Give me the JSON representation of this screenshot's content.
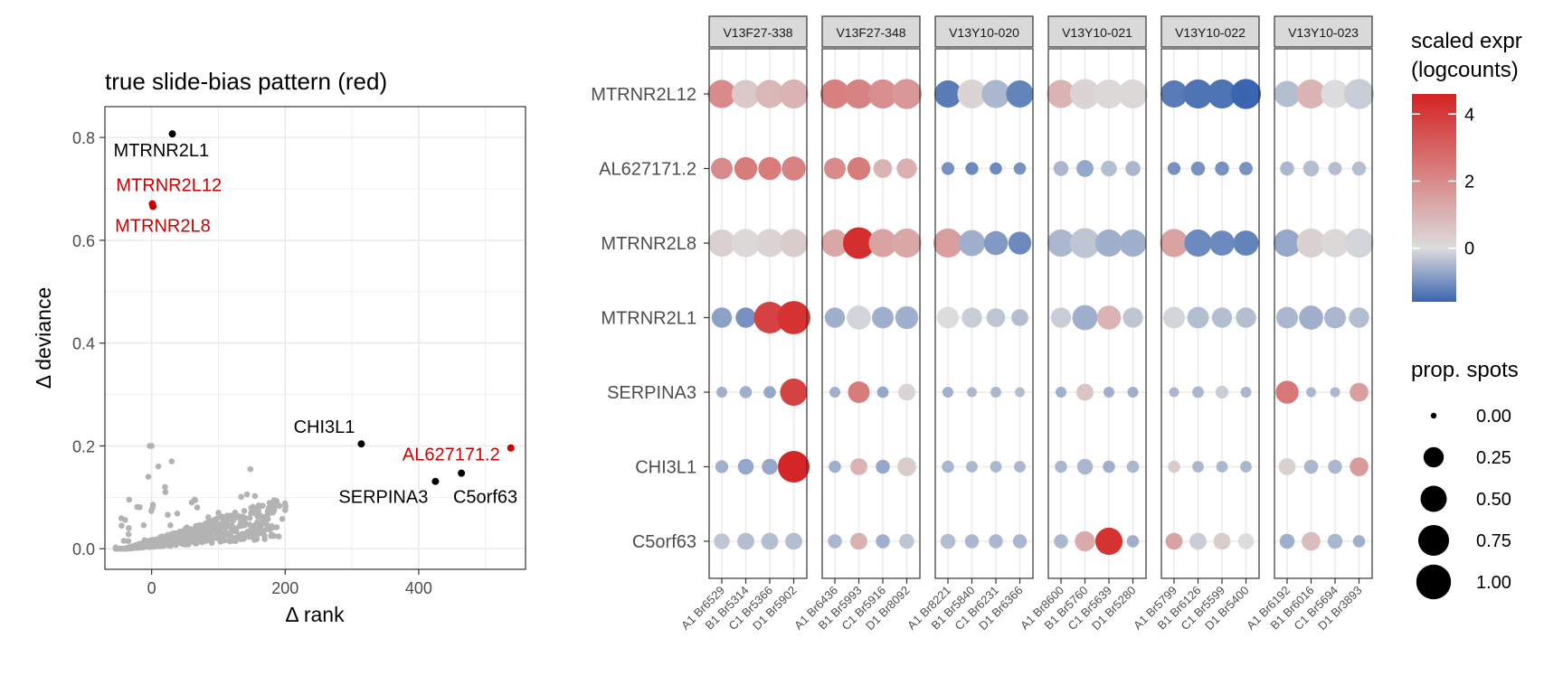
{
  "colors": {
    "highlight": "#cc0000",
    "labeled": "#000000",
    "background_points": "#b3b3b3",
    "strip_fill": "#d9d9d9",
    "grid": "#ebebeb",
    "scale_low": "#3b65b0",
    "scale_mid": "#dcdcdc",
    "scale_high": "#d42222"
  },
  "chart_data": [
    {
      "type": "scatter",
      "title": "true slide-bias pattern (red)",
      "xlabel": "Δ rank",
      "ylabel": "Δ deviance",
      "xlim": [
        -70,
        560
      ],
      "ylim": [
        -0.04,
        0.86
      ],
      "xticks": [
        0,
        200,
        400
      ],
      "yticks": [
        0.0,
        0.2,
        0.4,
        0.6,
        0.8
      ],
      "ytick_labels": [
        "0.0",
        "0.2",
        "0.4",
        "0.6",
        "0.8"
      ],
      "grid": true,
      "labeled_points": [
        {
          "label": "MTRNR2L1",
          "x": 31,
          "y": 0.807,
          "color": "#000000"
        },
        {
          "label": "MTRNR2L12",
          "x": 1,
          "y": 0.671,
          "color": "#cc0000"
        },
        {
          "label": "MTRNR2L8",
          "x": 2,
          "y": 0.666,
          "color": "#cc0000"
        },
        {
          "label": "CHI3L1",
          "x": 314,
          "y": 0.204,
          "color": "#000000"
        },
        {
          "label": "AL627171.2",
          "x": 538,
          "y": 0.196,
          "color": "#cc0000"
        },
        {
          "label": "SERPINA3",
          "x": 425,
          "y": 0.131,
          "color": "#000000"
        },
        {
          "label": "C5orf63",
          "x": 464,
          "y": 0.147,
          "color": "#000000"
        }
      ],
      "background_points_description_shown": false
    },
    {
      "type": "dot",
      "genes": [
        "MTRNR2L12",
        "AL627171.2",
        "MTRNR2L8",
        "MTRNR2L1",
        "SERPINA3",
        "CHI3L1",
        "C5orf63"
      ],
      "facets": [
        {
          "slide": "V13F27-338",
          "samples": [
            "A1 Br6529",
            "B1 Br5314",
            "C1 Br5366",
            "D1 Br5902"
          ],
          "expr": [
            [
              2.0,
              0.5,
              0.9,
              1.0
            ],
            [
              2.0,
              2.4,
              2.4,
              2.2
            ],
            [
              0.3,
              0.1,
              0.2,
              0.4
            ],
            [
              -0.8,
              -1.0,
              3.8,
              4.2
            ],
            [
              -0.6,
              -0.6,
              -0.7,
              3.8
            ],
            [
              -0.6,
              -0.7,
              -0.7,
              4.5
            ],
            [
              -0.3,
              -0.4,
              -0.4,
              -0.4
            ]
          ],
          "prop": [
            [
              0.6,
              0.6,
              0.6,
              0.65
            ],
            [
              0.3,
              0.35,
              0.35,
              0.4
            ],
            [
              0.55,
              0.6,
              0.6,
              0.6
            ],
            [
              0.25,
              0.25,
              0.8,
              0.9
            ],
            [
              0.03,
              0.05,
              0.05,
              0.55
            ],
            [
              0.06,
              0.12,
              0.12,
              0.8
            ],
            [
              0.12,
              0.15,
              0.15,
              0.15
            ]
          ]
        },
        {
          "slide": "V13F27-348",
          "samples": [
            "A1 Br6436",
            "B1 Br5993",
            "C1 Br5916",
            "D1 Br8092"
          ],
          "expr": [
            [
              2.3,
              2.2,
              1.9,
              1.7
            ],
            [
              2.0,
              2.4,
              1.0,
              1.1
            ],
            [
              1.3,
              4.3,
              1.4,
              1.3
            ],
            [
              -0.6,
              -0.1,
              -0.6,
              -0.6
            ],
            [
              -0.6,
              2.4,
              -0.7,
              0.2
            ],
            [
              -0.6,
              1.0,
              -0.7,
              0.4
            ],
            [
              -0.5,
              1.1,
              -0.6,
              -0.3
            ]
          ],
          "prop": [
            [
              0.65,
              0.65,
              0.65,
              0.7
            ],
            [
              0.3,
              0.35,
              0.2,
              0.25
            ],
            [
              0.55,
              0.8,
              0.6,
              0.65
            ],
            [
              0.25,
              0.4,
              0.3,
              0.35
            ],
            [
              0.03,
              0.3,
              0.04,
              0.15
            ],
            [
              0.05,
              0.15,
              0.08,
              0.2
            ],
            [
              0.08,
              0.15,
              0.08,
              0.1
            ]
          ]
        },
        {
          "slide": "V13Y10-020",
          "samples": [
            "A1 Br8221",
            "B1 Br5840",
            "C1 Br6231",
            "D1 Br6366"
          ],
          "expr": [
            [
              -1.3,
              0.2,
              -0.5,
              -1.2
            ],
            [
              -1.0,
              -1.1,
              -1.1,
              -1.0
            ],
            [
              1.5,
              -0.6,
              -0.9,
              -1.1
            ],
            [
              0.0,
              -0.2,
              -0.3,
              -0.4
            ],
            [
              -0.6,
              -0.5,
              -0.5,
              -0.4
            ],
            [
              -0.5,
              -0.5,
              -0.5,
              -0.5
            ],
            [
              -0.4,
              -0.5,
              -0.5,
              -0.5
            ]
          ],
          "prop": [
            [
              0.55,
              0.65,
              0.6,
              0.55
            ],
            [
              0.06,
              0.06,
              0.05,
              0.05
            ],
            [
              0.65,
              0.5,
              0.4,
              0.35
            ],
            [
              0.3,
              0.25,
              0.2,
              0.15
            ],
            [
              0.03,
              0.02,
              0.03,
              0.02
            ],
            [
              0.05,
              0.04,
              0.04,
              0.04
            ],
            [
              0.1,
              0.08,
              0.08,
              0.08
            ]
          ]
        },
        {
          "slide": "V13Y10-021",
          "samples": [
            "A1 Br8600",
            "B1 Br5760",
            "C1 Br5639",
            "D1 Br5280"
          ],
          "expr": [
            [
              1.0,
              0.2,
              0.1,
              0.1
            ],
            [
              -0.5,
              -0.7,
              -0.4,
              -0.5
            ],
            [
              -0.5,
              -0.3,
              -0.6,
              -0.6
            ],
            [
              -0.2,
              -0.6,
              1.0,
              -0.3
            ],
            [
              -0.6,
              0.6,
              -0.6,
              -0.6
            ],
            [
              -0.5,
              -0.5,
              -0.6,
              -0.5
            ],
            [
              -0.5,
              1.2,
              4.2,
              -0.6
            ]
          ],
          "prop": [
            [
              0.6,
              0.7,
              0.65,
              0.65
            ],
            [
              0.1,
              0.15,
              0.12,
              0.1
            ],
            [
              0.55,
              0.7,
              0.55,
              0.55
            ],
            [
              0.25,
              0.45,
              0.4,
              0.25
            ],
            [
              0.03,
              0.15,
              0.03,
              0.03
            ],
            [
              0.05,
              0.12,
              0.05,
              0.05
            ],
            [
              0.08,
              0.25,
              0.55,
              0.05
            ]
          ]
        },
        {
          "slide": "V13Y10-022",
          "samples": [
            "A1 Br5799",
            "B1 Br6126",
            "C1 Br5599",
            "D1 Br5400"
          ],
          "expr": [
            [
              -1.3,
              -1.4,
              -1.4,
              -1.6
            ],
            [
              -1.0,
              -1.0,
              -1.0,
              -1.0
            ],
            [
              1.4,
              -1.1,
              -1.1,
              -1.2
            ],
            [
              -0.1,
              -0.4,
              -0.4,
              -0.4
            ],
            [
              -0.5,
              -0.5,
              -0.2,
              -0.5
            ],
            [
              0.4,
              -0.5,
              -0.5,
              -0.5
            ],
            [
              1.4,
              -0.2,
              0.4,
              0.0
            ]
          ],
          "prop": [
            [
              0.55,
              0.65,
              0.65,
              0.7
            ],
            [
              0.06,
              0.08,
              0.08,
              0.07
            ],
            [
              0.6,
              0.55,
              0.45,
              0.45
            ],
            [
              0.3,
              0.3,
              0.25,
              0.25
            ],
            [
              0.02,
              0.04,
              0.06,
              0.03
            ],
            [
              0.05,
              0.04,
              0.04,
              0.04
            ],
            [
              0.15,
              0.15,
              0.15,
              0.12
            ]
          ]
        },
        {
          "slide": "V13Y10-023",
          "samples": [
            "A1 Br6192",
            "B1 Br6016",
            "C1 Br5694",
            "D1 Br3893"
          ],
          "expr": [
            [
              -0.4,
              1.0,
              0.0,
              -0.2
            ],
            [
              -0.5,
              -0.4,
              -0.4,
              -0.4
            ],
            [
              -0.7,
              0.3,
              0.1,
              -0.1
            ],
            [
              -0.5,
              -0.6,
              -0.5,
              -0.4
            ],
            [
              2.5,
              -0.5,
              -0.5,
              1.5
            ],
            [
              0.3,
              -0.5,
              -0.5,
              1.6
            ],
            [
              -0.6,
              0.8,
              -0.5,
              -0.6
            ]
          ],
          "prop": [
            [
              0.5,
              0.65,
              0.6,
              0.7
            ],
            [
              0.08,
              0.12,
              0.07,
              0.08
            ],
            [
              0.55,
              0.65,
              0.6,
              0.65
            ],
            [
              0.3,
              0.4,
              0.3,
              0.25
            ],
            [
              0.35,
              0.02,
              0.02,
              0.2
            ],
            [
              0.15,
              0.08,
              0.08,
              0.2
            ],
            [
              0.1,
              0.2,
              0.1,
              0.05
            ]
          ]
        }
      ],
      "legend": {
        "color_title_line1": "scaled expr",
        "color_title_line2": "(logcounts)",
        "color_ticks": [
          4,
          2,
          0
        ],
        "color_range": [
          -1.6,
          4.6
        ],
        "size_title": "prop. spots",
        "size_values": [
          0.0,
          0.25,
          0.5,
          0.75,
          1.0
        ],
        "size_labels": [
          "0.00",
          "0.25",
          "0.50",
          "0.75",
          "1.00"
        ],
        "placement": "right"
      }
    }
  ]
}
